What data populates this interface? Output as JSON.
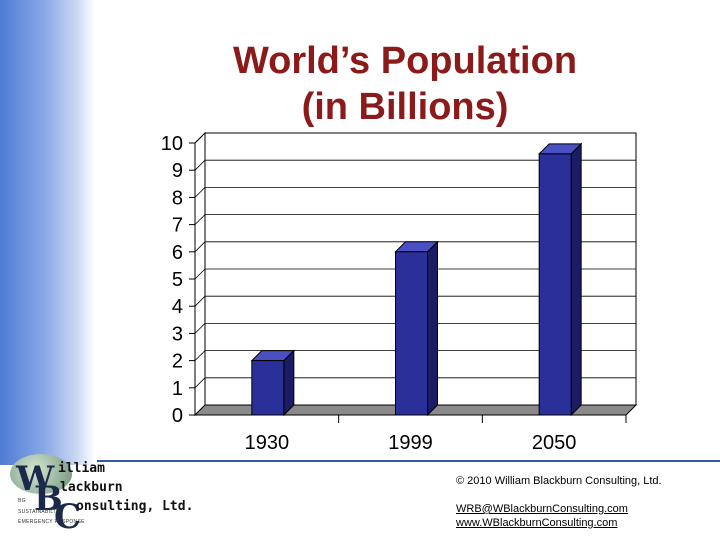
{
  "chart_data": {
    "type": "bar",
    "title_lines": [
      "World’s Population",
      "(in Billions)"
    ],
    "categories": [
      "1930",
      "1999",
      "2050"
    ],
    "values": [
      2,
      6,
      9.6
    ],
    "ylim": [
      0,
      10
    ],
    "yticks": [
      "0",
      "1",
      "2",
      "3",
      "4",
      "5",
      "6",
      "7",
      "8",
      "9",
      "10"
    ],
    "grid": true,
    "style": "3d",
    "colors": {
      "bar_front": "#2b2f99",
      "bar_side": "#1a1d66",
      "bar_top": "#4a4fc2",
      "wall": "#ffffff",
      "floor": "#8a8a8a"
    }
  },
  "logo": {
    "letters": [
      "W",
      "B",
      "C"
    ],
    "words": [
      "illiam",
      "lackburn",
      "onsulting, Ltd."
    ],
    "small": [
      "BG",
      "SUSTAINABILITY",
      "EMERGENCY RESPONSE"
    ]
  },
  "footer": {
    "copyright": "© 2010 William Blackburn Consulting, Ltd.",
    "email": "WRB@WBlackburnConsulting.com",
    "website": "www.WBlackburnConsulting.com"
  }
}
